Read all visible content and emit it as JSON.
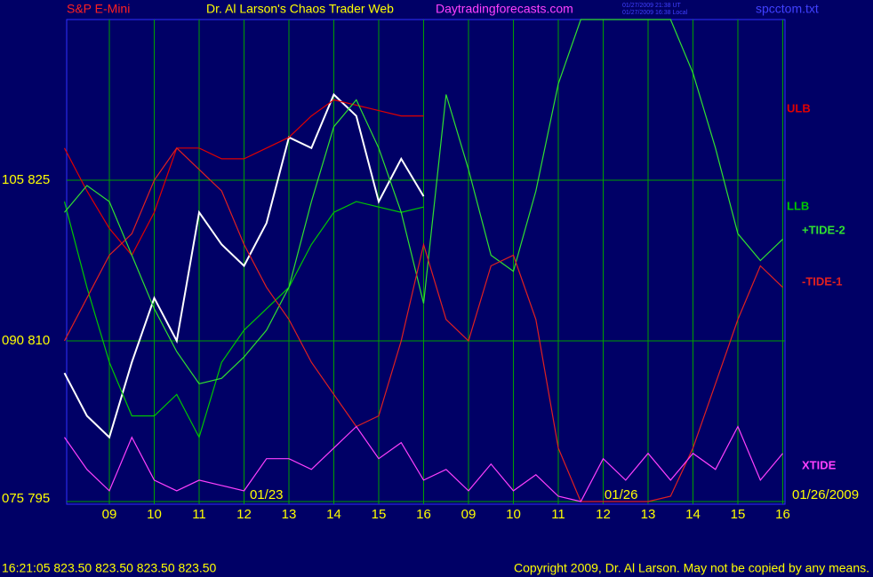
{
  "chart_data": {
    "type": "line",
    "header_left": "S&P E-Mini",
    "title": "Dr. Al Larson's Chaos Trader Web",
    "site": "Daytradingforecasts.com",
    "stamp_lines": [
      "01/27/2009 21:38 UT",
      "01/27/2009 16:38 Local"
    ],
    "file_name": "spcctom.txt",
    "date_labels": [
      {
        "x": 4.5,
        "text": "01/23"
      },
      {
        "x": 12.4,
        "text": "01/26"
      }
    ],
    "end_date": "01/26/2009",
    "quote": "16:21:05  823.50 823.50 823.50 823.50",
    "copyright": "Copyright 2009, Dr. Al Larson. May not be copied by any means.",
    "xlim": [
      0,
      16
    ],
    "ylim": [
      795,
      840
    ],
    "xticks": [
      {
        "value": 1,
        "label": "09"
      },
      {
        "value": 2,
        "label": "10"
      },
      {
        "value": 3,
        "label": "11"
      },
      {
        "value": 4,
        "label": "12"
      },
      {
        "value": 5,
        "label": "13"
      },
      {
        "value": 6,
        "label": "14"
      },
      {
        "value": 7,
        "label": "15"
      },
      {
        "value": 8,
        "label": "16"
      },
      {
        "value": 9,
        "label": "09"
      },
      {
        "value": 10,
        "label": "10"
      },
      {
        "value": 11,
        "label": "11"
      },
      {
        "value": 12,
        "label": "12"
      },
      {
        "value": 13,
        "label": "13"
      },
      {
        "value": 14,
        "label": "14"
      },
      {
        "value": 15,
        "label": "15"
      },
      {
        "value": 16,
        "label": "16"
      }
    ],
    "yticks": [
      {
        "value": 825,
        "label": "105  825"
      },
      {
        "value": 810,
        "label": "090  810"
      },
      {
        "value": 795,
        "label": "075  795"
      }
    ],
    "grid": true,
    "x": [
      0,
      0.5,
      1,
      1.5,
      2,
      2.5,
      3,
      3.5,
      4,
      4.5,
      5,
      5.5,
      6,
      6.5,
      7,
      7.5,
      8,
      8.5,
      9,
      9.5,
      10,
      10.5,
      11,
      11.5,
      12,
      12.5,
      13,
      13.5,
      14,
      14.5,
      15,
      15.5,
      16
    ],
    "series": [
      {
        "color": "#ffffff",
        "values": [
          807,
          803,
          801,
          808,
          814,
          810,
          822,
          819,
          817,
          821,
          829,
          828,
          833,
          831,
          823,
          827,
          823.5,
          null,
          null,
          null,
          null,
          null,
          null,
          null,
          null,
          null,
          null,
          null,
          null,
          null,
          null,
          null,
          null
        ]
      },
      {
        "name": "ULB",
        "color": "#e00000",
        "values": [
          828,
          824,
          820.5,
          818,
          822,
          828,
          828,
          827,
          827,
          828,
          829,
          831,
          832.5,
          832,
          831.5,
          831,
          831,
          null,
          null,
          null,
          null,
          null,
          null,
          null,
          null,
          null,
          null,
          null,
          null,
          null,
          null,
          null,
          null
        ]
      },
      {
        "name": "LLB",
        "color": "#00c800",
        "values": [
          823,
          815,
          808,
          803,
          803,
          805,
          801,
          808,
          811,
          813,
          815,
          819,
          822,
          823,
          822.5,
          822,
          822.5,
          null,
          null,
          null,
          null,
          null,
          null,
          null,
          null,
          null,
          null,
          null,
          null,
          null,
          null,
          null,
          null
        ]
      },
      {
        "name": "+TIDE-2",
        "color": "#30e030",
        "values": [
          822,
          824.5,
          823,
          818,
          813,
          809,
          806,
          806.5,
          808.5,
          811,
          815,
          823,
          830,
          832.5,
          828,
          822,
          813.5,
          833,
          826,
          818,
          816.5,
          824,
          834,
          840,
          840,
          840,
          840,
          840,
          835,
          828,
          820,
          817.5,
          819.5
        ]
      },
      {
        "name": "-TIDE-1",
        "color": "#e02020",
        "values": [
          810,
          814,
          818,
          820,
          825,
          828,
          826,
          824,
          819,
          815,
          812,
          808,
          805,
          802,
          803,
          810,
          819,
          812,
          810,
          817,
          818,
          812,
          800,
          795,
          795,
          795,
          795,
          795.5,
          800,
          806,
          812,
          817,
          815
        ]
      },
      {
        "name": "XTIDE",
        "color": "#ff40ff",
        "values": [
          801,
          798,
          796,
          801,
          797,
          796,
          797,
          796.5,
          796,
          799,
          799,
          798,
          800,
          802,
          799,
          800.5,
          797,
          798,
          796,
          798.5,
          796,
          797.5,
          795.5,
          795,
          799,
          797,
          799.5,
          797,
          799.5,
          798,
          802,
          797,
          799.5
        ]
      }
    ]
  }
}
